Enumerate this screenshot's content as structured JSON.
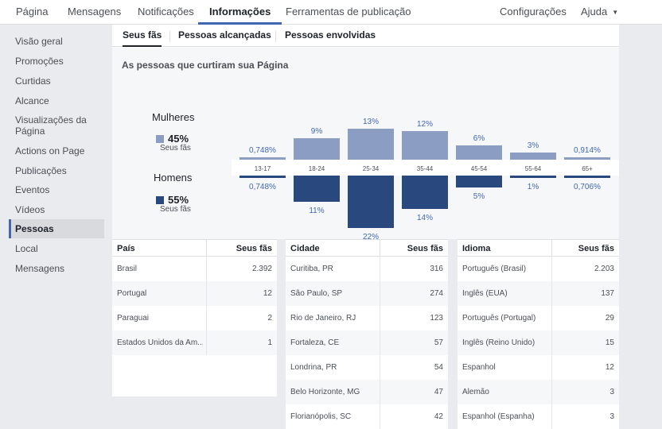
{
  "topnav": {
    "items": [
      "Página",
      "Mensagens",
      "Notificações",
      "Informações",
      "Ferramentas de publicação"
    ],
    "right_items": [
      "Configurações",
      "Ajuda"
    ]
  },
  "sidebar": {
    "items": [
      "Visão geral",
      "Promoções",
      "Curtidas",
      "Alcance",
      "Visualizações da Página",
      "Actions on Page",
      "Publicações",
      "Eventos",
      "Vídeos",
      "Pessoas",
      "Local",
      "Mensagens"
    ]
  },
  "tabs": [
    "Seus fãs",
    "Pessoas alcançadas",
    "Pessoas envolvidas"
  ],
  "chart_title": "As pessoas que curtiram sua Página",
  "legend": {
    "women": {
      "label": "Mulheres",
      "pct": "45%",
      "sub": "Seus fãs",
      "color": "#8b9dc3"
    },
    "men": {
      "label": "Homens",
      "pct": "55%",
      "sub": "Seus fãs",
      "color": "#29487d"
    }
  },
  "chart_data": {
    "type": "bar",
    "categories": [
      "13-17",
      "18-24",
      "25-34",
      "35-44",
      "45-54",
      "55-64",
      "65+"
    ],
    "series": [
      {
        "name": "Mulheres",
        "values": [
          0.748,
          9,
          13,
          12,
          6,
          3,
          0.914
        ],
        "labels": [
          "0,748%",
          "9%",
          "13%",
          "12%",
          "6%",
          "3%",
          "0,914%"
        ]
      },
      {
        "name": "Homens",
        "values": [
          0.748,
          11,
          22,
          14,
          5,
          1,
          0.706
        ],
        "labels": [
          "0,748%",
          "11%",
          "22%",
          "14%",
          "5%",
          "1%",
          "0,706%"
        ]
      }
    ]
  },
  "tables": {
    "country": {
      "headers": [
        "País",
        "Seus fãs"
      ],
      "rows": [
        [
          "Brasil",
          "2.392"
        ],
        [
          "Portugal",
          "12"
        ],
        [
          "Paraguai",
          "2"
        ],
        [
          "Estados Unidos da Am...",
          "1"
        ]
      ]
    },
    "city": {
      "headers": [
        "Cidade",
        "Seus fãs"
      ],
      "rows": [
        [
          "Curitiba, PR",
          "316"
        ],
        [
          "São Paulo, SP",
          "274"
        ],
        [
          "Rio de Janeiro, RJ",
          "123"
        ],
        [
          "Fortaleza, CE",
          "57"
        ],
        [
          "Londrina, PR",
          "54"
        ],
        [
          "Belo Horizonte, MG",
          "47"
        ],
        [
          "Florianópolis, SC",
          "42"
        ]
      ]
    },
    "language": {
      "headers": [
        "Idioma",
        "Seus fãs"
      ],
      "rows": [
        [
          "Português (Brasil)",
          "2.203"
        ],
        [
          "Inglês (EUA)",
          "137"
        ],
        [
          "Português (Portugal)",
          "29"
        ],
        [
          "Inglês (Reino Unido)",
          "15"
        ],
        [
          "Espanhol",
          "12"
        ],
        [
          "Alemão",
          "3"
        ],
        [
          "Espanhol (Espanha)",
          "3"
        ]
      ]
    }
  }
}
